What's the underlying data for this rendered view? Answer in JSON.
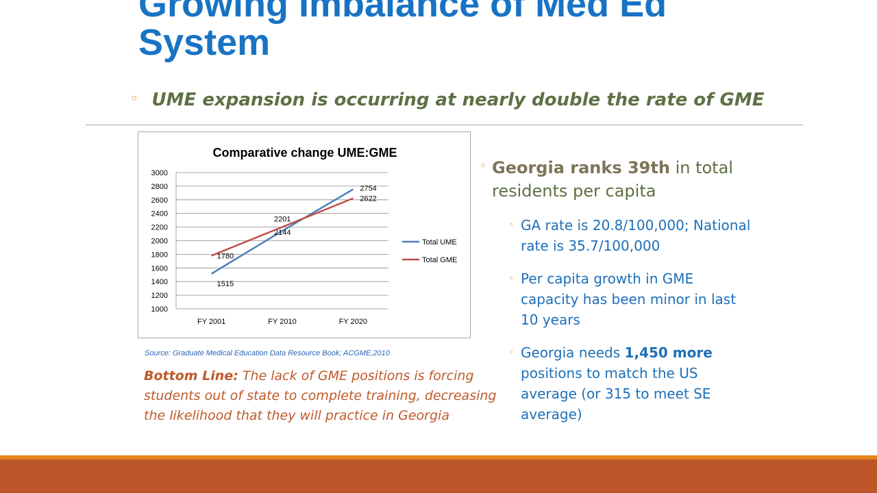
{
  "slide": {
    "title_line1": "Growing Imbalance of Med Ed",
    "title_line2": "System",
    "subtitle": "UME expansion is occurring at nearly double the rate of GME",
    "source": "Source: Graduate Medical Education Data Resource Book; ACGME,2010",
    "bottom_line_label": "Bottom Line:",
    "bottom_line_text": " The lack of GME positions is forcing students out of state to complete training, decreasing the likelihood that they will practice in Georgia",
    "bullet_main_em": "Georgia ranks 39th",
    "bullet_main_rest": " in total residents per capita",
    "sub1": "GA rate is 20.8/100,000; National rate is 35.7/100,000",
    "sub2": "Per capita growth in GME capacity has been minor in last 10 years",
    "sub3_pre": "Georgia needs ",
    "sub3_num": "1,450",
    "sub3_more": " more",
    "sub3_post": " positions to match the US average (or 315 to meet SE average)"
  },
  "colors": {
    "ume": "#4a7ebb",
    "gme": "#be4b48",
    "title": "#1873c4",
    "accent": "#dd8a1c",
    "footer": "#bd5629"
  },
  "chart_data": {
    "type": "line",
    "title": "Comparative change UME:GME",
    "categories": [
      "FY 2001",
      "FY 2010",
      "FY 2020"
    ],
    "series": [
      {
        "name": "Total UME",
        "values": [
          1515,
          2144,
          2754
        ],
        "labels": [
          "1515",
          "2144",
          "2754"
        ]
      },
      {
        "name": "Total GME",
        "values": [
          1780,
          2201,
          2622
        ],
        "labels": [
          "1780",
          "2201",
          "2622"
        ]
      }
    ],
    "yticks": [
      "1000",
      "1200",
      "1400",
      "1600",
      "1800",
      "2000",
      "2200",
      "2400",
      "2600",
      "2800",
      "3000"
    ],
    "ylim": [
      1000,
      3000
    ],
    "grid": true,
    "legend": "right"
  }
}
